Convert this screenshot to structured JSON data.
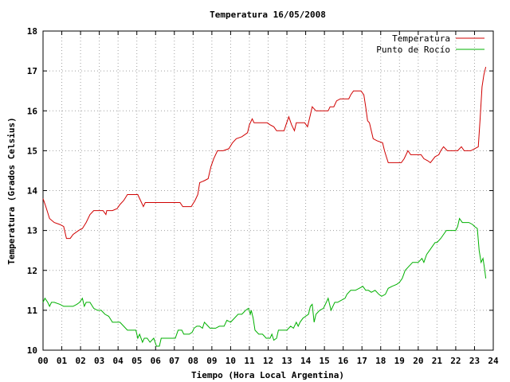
{
  "chart_data": {
    "type": "line",
    "title": "Temperatura 16/05/2008",
    "xlabel": "Tiempo (Hora Local Argentina)",
    "ylabel": "Temperatura (Grados Celsius)",
    "xlim": [
      0,
      24
    ],
    "ylim": [
      10,
      18
    ],
    "x_ticks": [
      "00",
      "01",
      "02",
      "03",
      "04",
      "05",
      "06",
      "07",
      "08",
      "09",
      "10",
      "11",
      "12",
      "13",
      "14",
      "15",
      "16",
      "17",
      "18",
      "19",
      "20",
      "21",
      "22",
      "23",
      "24"
    ],
    "y_ticks": [
      "10",
      "11",
      "12",
      "13",
      "14",
      "15",
      "16",
      "17",
      "18"
    ],
    "grid": true,
    "legend_position": "top-right",
    "series": [
      {
        "name": "Temperatura",
        "color": "#d00000",
        "points": [
          [
            0.0,
            13.8
          ],
          [
            0.15,
            13.6
          ],
          [
            0.35,
            13.3
          ],
          [
            0.6,
            13.2
          ],
          [
            0.9,
            13.15
          ],
          [
            1.1,
            13.1
          ],
          [
            1.25,
            12.8
          ],
          [
            1.45,
            12.8
          ],
          [
            1.6,
            12.9
          ],
          [
            1.9,
            13.0
          ],
          [
            2.1,
            13.05
          ],
          [
            2.3,
            13.2
          ],
          [
            2.5,
            13.4
          ],
          [
            2.7,
            13.5
          ],
          [
            3.0,
            13.5
          ],
          [
            3.2,
            13.5
          ],
          [
            3.35,
            13.4
          ],
          [
            3.4,
            13.5
          ],
          [
            3.7,
            13.5
          ],
          [
            3.95,
            13.55
          ],
          [
            4.1,
            13.65
          ],
          [
            4.3,
            13.75
          ],
          [
            4.5,
            13.9
          ],
          [
            4.8,
            13.9
          ],
          [
            5.05,
            13.9
          ],
          [
            5.2,
            13.75
          ],
          [
            5.35,
            13.6
          ],
          [
            5.45,
            13.7
          ],
          [
            5.7,
            13.7
          ],
          [
            6.2,
            13.7
          ],
          [
            6.8,
            13.7
          ],
          [
            7.3,
            13.7
          ],
          [
            7.45,
            13.6
          ],
          [
            7.9,
            13.6
          ],
          [
            8.1,
            13.75
          ],
          [
            8.25,
            13.9
          ],
          [
            8.35,
            14.2
          ],
          [
            8.6,
            14.25
          ],
          [
            8.8,
            14.3
          ],
          [
            8.95,
            14.6
          ],
          [
            9.1,
            14.8
          ],
          [
            9.3,
            15.0
          ],
          [
            9.6,
            15.0
          ],
          [
            9.9,
            15.05
          ],
          [
            10.1,
            15.2
          ],
          [
            10.3,
            15.3
          ],
          [
            10.6,
            15.35
          ],
          [
            10.9,
            15.45
          ],
          [
            11.0,
            15.65
          ],
          [
            11.15,
            15.8
          ],
          [
            11.25,
            15.7
          ],
          [
            11.6,
            15.7
          ],
          [
            11.85,
            15.7
          ],
          [
            11.95,
            15.7
          ],
          [
            12.1,
            15.65
          ],
          [
            12.3,
            15.6
          ],
          [
            12.45,
            15.5
          ],
          [
            12.6,
            15.5
          ],
          [
            12.85,
            15.5
          ],
          [
            12.95,
            15.65
          ],
          [
            13.1,
            15.85
          ],
          [
            13.25,
            15.65
          ],
          [
            13.4,
            15.5
          ],
          [
            13.5,
            15.7
          ],
          [
            13.7,
            15.7
          ],
          [
            13.95,
            15.7
          ],
          [
            14.1,
            15.6
          ],
          [
            14.25,
            15.9
          ],
          [
            14.35,
            16.1
          ],
          [
            14.55,
            16.0
          ],
          [
            14.8,
            16.0
          ],
          [
            15.0,
            16.0
          ],
          [
            15.2,
            16.0
          ],
          [
            15.3,
            16.1
          ],
          [
            15.5,
            16.1
          ],
          [
            15.65,
            16.25
          ],
          [
            15.85,
            16.3
          ],
          [
            16.05,
            16.3
          ],
          [
            16.3,
            16.3
          ],
          [
            16.4,
            16.4
          ],
          [
            16.55,
            16.5
          ],
          [
            16.8,
            16.5
          ],
          [
            16.95,
            16.5
          ],
          [
            17.1,
            16.4
          ],
          [
            17.2,
            16.1
          ],
          [
            17.3,
            15.75
          ],
          [
            17.4,
            15.7
          ],
          [
            17.6,
            15.3
          ],
          [
            17.8,
            15.25
          ],
          [
            18.1,
            15.2
          ],
          [
            18.2,
            15.0
          ],
          [
            18.3,
            14.85
          ],
          [
            18.4,
            14.7
          ],
          [
            18.8,
            14.7
          ],
          [
            19.1,
            14.7
          ],
          [
            19.25,
            14.8
          ],
          [
            19.45,
            15.0
          ],
          [
            19.6,
            14.9
          ],
          [
            19.95,
            14.9
          ],
          [
            20.15,
            14.9
          ],
          [
            20.3,
            14.8
          ],
          [
            20.5,
            14.75
          ],
          [
            20.65,
            14.7
          ],
          [
            20.9,
            14.85
          ],
          [
            21.1,
            14.9
          ],
          [
            21.2,
            15.0
          ],
          [
            21.35,
            15.1
          ],
          [
            21.55,
            15.0
          ],
          [
            21.9,
            15.0
          ],
          [
            22.1,
            15.0
          ],
          [
            22.3,
            15.1
          ],
          [
            22.45,
            15.0
          ],
          [
            22.8,
            15.0
          ],
          [
            23.0,
            15.05
          ],
          [
            23.2,
            15.1
          ],
          [
            23.3,
            15.8
          ],
          [
            23.4,
            16.6
          ],
          [
            23.5,
            16.9
          ],
          [
            23.6,
            17.1
          ]
        ]
      },
      {
        "name": "Punto de Rocío",
        "color": "#00b000",
        "points": [
          [
            0.0,
            11.2
          ],
          [
            0.1,
            11.3
          ],
          [
            0.25,
            11.2
          ],
          [
            0.35,
            11.1
          ],
          [
            0.45,
            11.2
          ],
          [
            0.6,
            11.2
          ],
          [
            0.9,
            11.15
          ],
          [
            1.1,
            11.1
          ],
          [
            1.4,
            11.1
          ],
          [
            1.6,
            11.1
          ],
          [
            1.8,
            11.15
          ],
          [
            1.95,
            11.2
          ],
          [
            2.1,
            11.3
          ],
          [
            2.2,
            11.1
          ],
          [
            2.3,
            11.2
          ],
          [
            2.5,
            11.2
          ],
          [
            2.7,
            11.05
          ],
          [
            2.9,
            11.0
          ],
          [
            3.1,
            11.0
          ],
          [
            3.3,
            10.9
          ],
          [
            3.5,
            10.85
          ],
          [
            3.7,
            10.7
          ],
          [
            3.9,
            10.7
          ],
          [
            4.1,
            10.7
          ],
          [
            4.3,
            10.6
          ],
          [
            4.5,
            10.5
          ],
          [
            4.7,
            10.5
          ],
          [
            4.95,
            10.5
          ],
          [
            5.05,
            10.3
          ],
          [
            5.15,
            10.4
          ],
          [
            5.3,
            10.2
          ],
          [
            5.4,
            10.3
          ],
          [
            5.55,
            10.3
          ],
          [
            5.7,
            10.2
          ],
          [
            5.9,
            10.3
          ],
          [
            6.05,
            10.1
          ],
          [
            6.2,
            10.1
          ],
          [
            6.3,
            10.3
          ],
          [
            6.6,
            10.3
          ],
          [
            6.85,
            10.3
          ],
          [
            7.05,
            10.3
          ],
          [
            7.2,
            10.5
          ],
          [
            7.4,
            10.5
          ],
          [
            7.5,
            10.4
          ],
          [
            7.8,
            10.4
          ],
          [
            7.95,
            10.45
          ],
          [
            8.05,
            10.55
          ],
          [
            8.2,
            10.6
          ],
          [
            8.35,
            10.6
          ],
          [
            8.5,
            10.55
          ],
          [
            8.6,
            10.7
          ],
          [
            8.8,
            10.6
          ],
          [
            8.9,
            10.55
          ],
          [
            9.2,
            10.55
          ],
          [
            9.4,
            10.6
          ],
          [
            9.65,
            10.6
          ],
          [
            9.8,
            10.75
          ],
          [
            10.0,
            10.7
          ],
          [
            10.2,
            10.8
          ],
          [
            10.4,
            10.9
          ],
          [
            10.6,
            10.9
          ],
          [
            10.8,
            11.0
          ],
          [
            10.95,
            11.05
          ],
          [
            11.05,
            10.9
          ],
          [
            11.1,
            11.0
          ],
          [
            11.2,
            10.8
          ],
          [
            11.3,
            10.5
          ],
          [
            11.5,
            10.4
          ],
          [
            11.7,
            10.4
          ],
          [
            11.9,
            10.3
          ],
          [
            12.1,
            10.3
          ],
          [
            12.2,
            10.4
          ],
          [
            12.3,
            10.25
          ],
          [
            12.45,
            10.3
          ],
          [
            12.55,
            10.5
          ],
          [
            12.8,
            10.5
          ],
          [
            13.0,
            10.5
          ],
          [
            13.2,
            10.6
          ],
          [
            13.35,
            10.55
          ],
          [
            13.5,
            10.7
          ],
          [
            13.6,
            10.6
          ],
          [
            13.7,
            10.7
          ],
          [
            13.85,
            10.8
          ],
          [
            14.0,
            10.85
          ],
          [
            14.15,
            10.9
          ],
          [
            14.25,
            11.1
          ],
          [
            14.35,
            11.15
          ],
          [
            14.45,
            10.7
          ],
          [
            14.55,
            10.9
          ],
          [
            14.75,
            11.0
          ],
          [
            14.95,
            11.05
          ],
          [
            15.1,
            11.2
          ],
          [
            15.2,
            11.3
          ],
          [
            15.35,
            11.0
          ],
          [
            15.55,
            11.2
          ],
          [
            15.7,
            11.2
          ],
          [
            15.9,
            11.25
          ],
          [
            16.1,
            11.3
          ],
          [
            16.2,
            11.4
          ],
          [
            16.4,
            11.5
          ],
          [
            16.65,
            11.5
          ],
          [
            16.85,
            11.55
          ],
          [
            17.05,
            11.6
          ],
          [
            17.2,
            11.5
          ],
          [
            17.35,
            11.5
          ],
          [
            17.5,
            11.45
          ],
          [
            17.7,
            11.5
          ],
          [
            17.9,
            11.4
          ],
          [
            18.05,
            11.35
          ],
          [
            18.25,
            11.4
          ],
          [
            18.4,
            11.55
          ],
          [
            18.6,
            11.6
          ],
          [
            18.85,
            11.65
          ],
          [
            19.0,
            11.7
          ],
          [
            19.15,
            11.8
          ],
          [
            19.3,
            12.0
          ],
          [
            19.5,
            12.1
          ],
          [
            19.7,
            12.2
          ],
          [
            20.0,
            12.2
          ],
          [
            20.2,
            12.3
          ],
          [
            20.3,
            12.2
          ],
          [
            20.45,
            12.4
          ],
          [
            20.6,
            12.5
          ],
          [
            20.75,
            12.6
          ],
          [
            20.9,
            12.7
          ],
          [
            21.0,
            12.7
          ],
          [
            21.2,
            12.8
          ],
          [
            21.35,
            12.9
          ],
          [
            21.5,
            13.0
          ],
          [
            21.8,
            13.0
          ],
          [
            22.0,
            13.0
          ],
          [
            22.1,
            13.1
          ],
          [
            22.2,
            13.3
          ],
          [
            22.35,
            13.2
          ],
          [
            22.7,
            13.2
          ],
          [
            22.9,
            13.15
          ],
          [
            23.0,
            13.1
          ],
          [
            23.15,
            13.05
          ],
          [
            23.25,
            12.5
          ],
          [
            23.35,
            12.2
          ],
          [
            23.45,
            12.3
          ],
          [
            23.55,
            12.0
          ],
          [
            23.6,
            11.8
          ]
        ]
      }
    ]
  }
}
